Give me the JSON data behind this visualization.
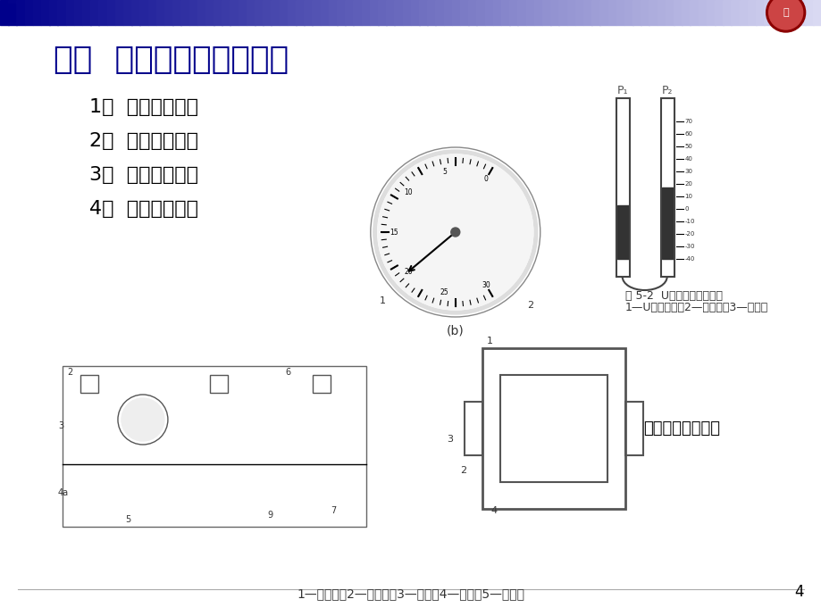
{
  "title": "三．  压力测量仪表的分类",
  "title_color": "#00008B",
  "title_fontsize": 26,
  "bg_color": "#FFFFFF",
  "header_bar_color_left": "#00008B",
  "header_bar_color_right": "#CCCCFF",
  "list_items": [
    "1．  液柱式压力计",
    "2．  弹性式压力计",
    "3．  负荷式压力计",
    "4．  电气式压力计"
  ],
  "list_color": "#000000",
  "list_fontsize": 16,
  "caption_bottom": "1—低压腔；2—高压腔；3—硅杯；4—引线；5—硅膜片",
  "caption_color": "#333333",
  "caption_fontsize": 10,
  "page_number": "4",
  "page_num_color": "#000000",
  "label_strain": "应变式压力传感器",
  "label_strain_color": "#000000",
  "label_strain_fontsize": 13,
  "fig_caption_u": "图 5-2  U形管压力计原理图",
  "fig_caption_u2": "1—U形玻璃管；2—工作液；3—刻度尺",
  "fig_caption_color": "#333333",
  "fig_caption_fontsize": 9
}
